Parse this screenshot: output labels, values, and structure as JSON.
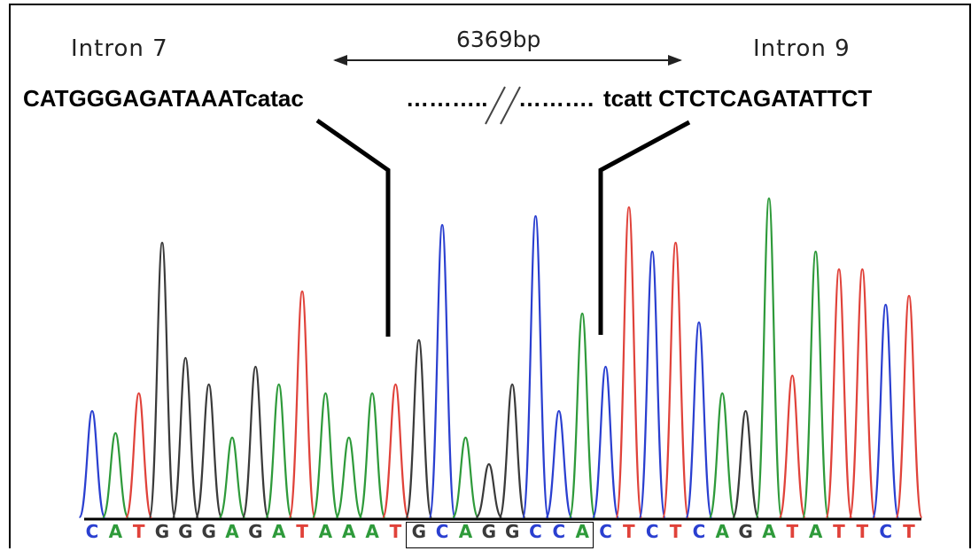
{
  "labels": {
    "intron_left": "Intron 7",
    "intron_right": "Intron 9",
    "deletion_size": "6369bp"
  },
  "sequence": {
    "left_exonic": "CATGGGAGATAAAT",
    "left_intronic": "catac",
    "left_dots": "………..",
    "break_mark": "//",
    "right_dots": "……….",
    "right_intronic": "tcatt",
    "right_exonic": "CTCTCAGATATTCT"
  },
  "chromatogram": {
    "base_calls": [
      "C",
      "A",
      "T",
      "G",
      "G",
      "G",
      "A",
      "G",
      "A",
      "T",
      "A",
      "A",
      "A",
      "T",
      "G",
      "C",
      "A",
      "G",
      "G",
      "C",
      "C",
      "A",
      "C",
      "T",
      "C",
      "T",
      "C",
      "A",
      "G",
      "A",
      "T",
      "A",
      "T",
      "T",
      "C",
      "T"
    ],
    "inserted_range": [
      14,
      21
    ],
    "colors": {
      "A": "#2e9a3a",
      "C": "#2a3fd0",
      "G": "#3a3a3a",
      "T": "#e0423a"
    }
  }
}
